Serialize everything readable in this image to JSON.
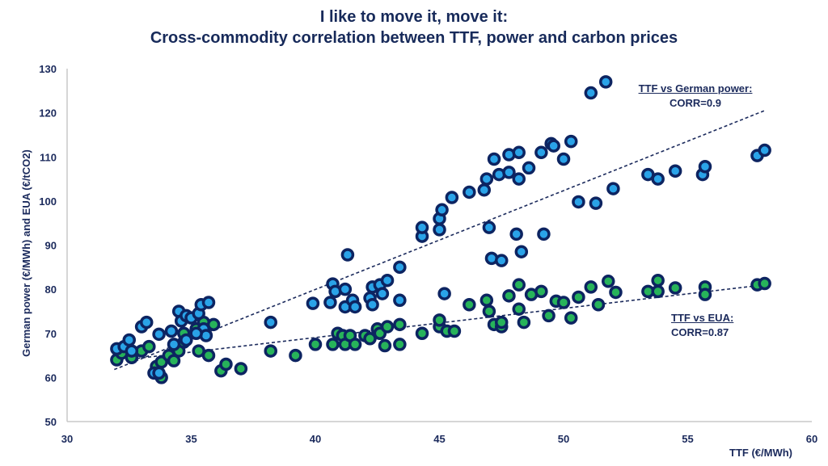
{
  "title": {
    "line1": "I like to move it, move it:",
    "line2": "Cross-commodity correlation between TTF, power and carbon prices"
  },
  "colors": {
    "marker_edge": "#0d2461",
    "power_fill": "#2aa3e8",
    "eua_fill": "#27b35a",
    "trendline": "#1b2a5c",
    "axis": "#c8c8c8",
    "text": "#1b2a5c"
  },
  "annotations": {
    "power": {
      "title": "TTF vs German power:",
      "corr": "CORR=0.9"
    },
    "eua": {
      "title": "TTF vs EUA:",
      "corr": "CORR=0.87"
    }
  },
  "chart_data": {
    "type": "scatter",
    "title": "I like to move it, move it: Cross-commodity correlation between TTF, power and carbon prices",
    "xlabel": "TTF (€/MWh)",
    "ylabel": "German power (€/MWh) and EUA (€/tCO2)",
    "xlim": [
      30,
      60
    ],
    "ylim": [
      50,
      130
    ],
    "xticks": [
      30,
      35,
      40,
      45,
      50,
      55,
      60
    ],
    "yticks": [
      50,
      60,
      70,
      80,
      90,
      100,
      110,
      120,
      130
    ],
    "grid": false,
    "legend": "none (inline annotations)",
    "series": [
      {
        "name": "TTF vs German power",
        "correlation": 0.9,
        "trendline": [
          [
            31.9,
            61.8
          ],
          [
            58.1,
            120.5
          ]
        ],
        "points": [
          [
            32.0,
            66.5
          ],
          [
            32.3,
            67
          ],
          [
            32.6,
            66
          ],
          [
            32.5,
            68.5
          ],
          [
            33.0,
            71.5
          ],
          [
            33.2,
            72.5
          ],
          [
            33.5,
            61
          ],
          [
            33.7,
            61
          ],
          [
            33.7,
            69.8
          ],
          [
            34.2,
            70.5
          ],
          [
            34.3,
            67.5
          ],
          [
            34.5,
            75
          ],
          [
            34.6,
            72.8
          ],
          [
            34.8,
            74
          ],
          [
            35.0,
            73.5
          ],
          [
            35.3,
            74.5
          ],
          [
            35.4,
            76.5
          ],
          [
            35.5,
            71
          ],
          [
            35.6,
            69.5
          ],
          [
            35.7,
            77
          ],
          [
            34.8,
            68.5
          ],
          [
            35.2,
            70
          ],
          [
            38.2,
            72.5
          ],
          [
            39.9,
            76.8
          ],
          [
            40.7,
            81.2
          ],
          [
            40.8,
            79.5
          ],
          [
            40.6,
            77
          ],
          [
            41.2,
            80
          ],
          [
            41.2,
            76
          ],
          [
            41.3,
            87.8
          ],
          [
            41.5,
            77.5
          ],
          [
            41.6,
            76
          ],
          [
            42.2,
            78
          ],
          [
            42.3,
            80.5
          ],
          [
            42.3,
            76.5
          ],
          [
            42.6,
            81
          ],
          [
            42.7,
            79
          ],
          [
            42.9,
            82
          ],
          [
            43.4,
            85
          ],
          [
            43.4,
            77.5
          ],
          [
            44.3,
            92
          ],
          [
            44.3,
            94
          ],
          [
            45.0,
            93.5
          ],
          [
            45.0,
            96
          ],
          [
            45.1,
            98
          ],
          [
            45.2,
            79
          ],
          [
            45.5,
            100.8
          ],
          [
            46.2,
            102
          ],
          [
            46.8,
            102.5
          ],
          [
            46.9,
            105
          ],
          [
            47.2,
            109.5
          ],
          [
            47.4,
            106
          ],
          [
            47.8,
            106.5
          ],
          [
            47.8,
            110.5
          ],
          [
            48.2,
            105
          ],
          [
            48.2,
            111
          ],
          [
            48.6,
            107.5
          ],
          [
            49.1,
            111
          ],
          [
            49.5,
            113
          ],
          [
            49.6,
            112.5
          ],
          [
            50.0,
            109.5
          ],
          [
            50.3,
            113.5
          ],
          [
            47.0,
            94
          ],
          [
            47.1,
            87
          ],
          [
            47.5,
            86.5
          ],
          [
            48.1,
            92.5
          ],
          [
            48.3,
            88.5
          ],
          [
            49.2,
            92.5
          ],
          [
            50.6,
            99.8
          ],
          [
            51.3,
            99.5
          ],
          [
            52.0,
            102.8
          ],
          [
            51.1,
            124.5
          ],
          [
            51.7,
            127
          ],
          [
            53.4,
            106
          ],
          [
            53.8,
            105
          ],
          [
            54.5,
            106.8
          ],
          [
            55.6,
            106
          ],
          [
            55.7,
            107.8
          ],
          [
            57.8,
            110.3
          ],
          [
            58.1,
            111.5
          ]
        ]
      },
      {
        "name": "TTF vs EUA",
        "correlation": 0.87,
        "trendline": [
          [
            31.9,
            63.7
          ],
          [
            58.1,
            81.0
          ]
        ],
        "points": [
          [
            32.0,
            64
          ],
          [
            32.2,
            65.5
          ],
          [
            32.6,
            64.5
          ],
          [
            33.0,
            66
          ],
          [
            33.3,
            67
          ],
          [
            33.6,
            62.5
          ],
          [
            33.8,
            63.5
          ],
          [
            33.8,
            60
          ],
          [
            34.1,
            65
          ],
          [
            34.3,
            63.8
          ],
          [
            34.5,
            66
          ],
          [
            34.7,
            68
          ],
          [
            34.7,
            70
          ],
          [
            35.2,
            71
          ],
          [
            35.3,
            66
          ],
          [
            35.5,
            72.5
          ],
          [
            35.7,
            65
          ],
          [
            35.9,
            72
          ],
          [
            36.2,
            61.5
          ],
          [
            36.4,
            63
          ],
          [
            37.0,
            62
          ],
          [
            38.2,
            66
          ],
          [
            39.2,
            65
          ],
          [
            40.0,
            67.5
          ],
          [
            40.7,
            67.5
          ],
          [
            40.9,
            70
          ],
          [
            41.1,
            69.5
          ],
          [
            41.2,
            67.5
          ],
          [
            41.4,
            69.5
          ],
          [
            41.6,
            67.5
          ],
          [
            42.0,
            69.5
          ],
          [
            42.2,
            68.8
          ],
          [
            42.5,
            71
          ],
          [
            42.6,
            70
          ],
          [
            42.8,
            67.2
          ],
          [
            42.9,
            71.5
          ],
          [
            43.4,
            72
          ],
          [
            43.4,
            67.5
          ],
          [
            44.3,
            70
          ],
          [
            45.0,
            71.5
          ],
          [
            45.0,
            73
          ],
          [
            45.3,
            70.5
          ],
          [
            45.6,
            70.5
          ],
          [
            46.2,
            76.5
          ],
          [
            46.9,
            77.5
          ],
          [
            47.0,
            75
          ],
          [
            47.2,
            72
          ],
          [
            47.5,
            71.5
          ],
          [
            47.5,
            72.5
          ],
          [
            47.8,
            78.5
          ],
          [
            48.2,
            81
          ],
          [
            48.2,
            75.5
          ],
          [
            48.4,
            72.5
          ],
          [
            48.7,
            78.8
          ],
          [
            49.1,
            79.5
          ],
          [
            49.4,
            74
          ],
          [
            49.7,
            77.3
          ],
          [
            50.0,
            77
          ],
          [
            50.3,
            73.5
          ],
          [
            50.6,
            78.2
          ],
          [
            51.1,
            80.5
          ],
          [
            51.4,
            76.5
          ],
          [
            51.8,
            81.8
          ],
          [
            52.1,
            79.3
          ],
          [
            53.4,
            79.5
          ],
          [
            53.8,
            79.5
          ],
          [
            53.8,
            82
          ],
          [
            54.5,
            80.3
          ],
          [
            55.7,
            80.5
          ],
          [
            55.7,
            78.8
          ],
          [
            57.8,
            81
          ],
          [
            58.1,
            81.3
          ]
        ]
      }
    ]
  }
}
